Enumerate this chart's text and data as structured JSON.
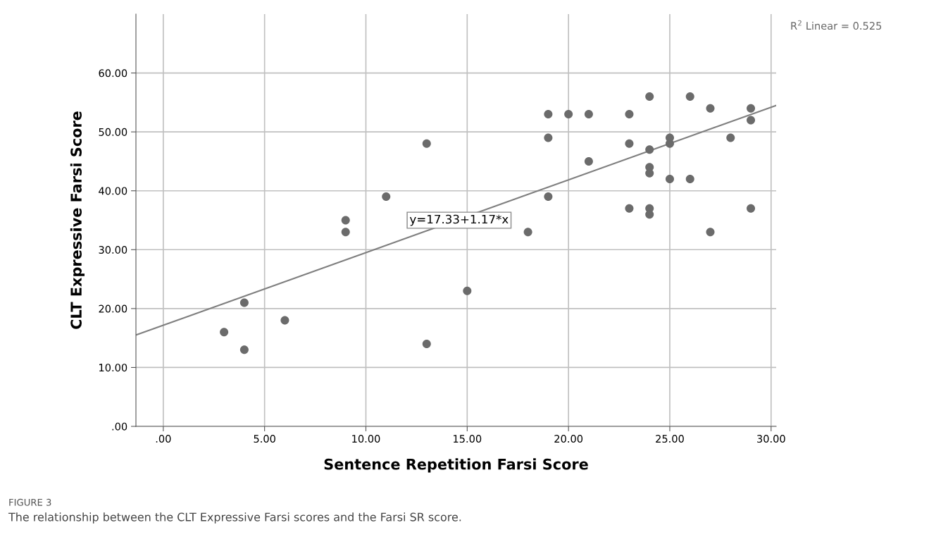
{
  "chart_data": {
    "type": "scatter",
    "xlabel": "Sentence Repetition Farsi Score",
    "ylabel": "CLT Expressive Farsi Score",
    "series": [
      {
        "color": "#6b6b6b",
        "marker": "circle",
        "x": [
          3,
          4,
          4,
          6,
          9,
          9,
          11,
          13,
          13,
          15,
          18,
          19,
          19,
          19,
          20,
          21,
          21,
          23,
          23,
          23,
          24,
          24,
          24,
          24,
          24,
          24,
          25,
          25,
          25,
          26,
          26,
          27,
          27,
          28,
          29,
          29,
          29
        ],
        "values": [
          16,
          21,
          13,
          18,
          35,
          33,
          39,
          48,
          14,
          23,
          33,
          53,
          49,
          39,
          53,
          53,
          45,
          53,
          48,
          37,
          56,
          47,
          44,
          43,
          37,
          36,
          49,
          48,
          42,
          56,
          42,
          54,
          33,
          49,
          54,
          52,
          37
        ]
      },
      {
        "type": "line",
        "color": "#7f7f7f",
        "marker": "none",
        "x": [
          -1.35,
          30.25
        ],
        "values": [
          15.5,
          54.5
        ]
      }
    ],
    "xlim": [
      -1.35,
      30.25
    ],
    "ylim": [
      0,
      70
    ],
    "xticks": [
      {
        "value": 0,
        "label": ".00"
      },
      {
        "value": 5,
        "label": "5.00"
      },
      {
        "value": 10,
        "label": "10.00"
      },
      {
        "value": 15,
        "label": "15.00"
      },
      {
        "value": 20,
        "label": "20.00"
      },
      {
        "value": 25,
        "label": "25.00"
      },
      {
        "value": 30,
        "label": "30.00"
      }
    ],
    "yticks": [
      {
        "value": 0,
        "label": ".00"
      },
      {
        "value": 10,
        "label": "10.00"
      },
      {
        "value": 20,
        "label": "20.00"
      },
      {
        "value": 30,
        "label": "30.00"
      },
      {
        "value": 40,
        "label": "40.00"
      },
      {
        "value": 50,
        "label": "50.00"
      },
      {
        "value": 60,
        "label": "60.00"
      }
    ],
    "grid": true,
    "annotations": [
      {
        "text": "y=17.33+1.17*x",
        "x": 14.6,
        "y": 35
      },
      "R$^{2}$ Linear = 0.525",
      "FIGURE 3",
      "The relationship between the CLT Expressive Farsi scores and the Farsi SR score."
    ]
  }
}
